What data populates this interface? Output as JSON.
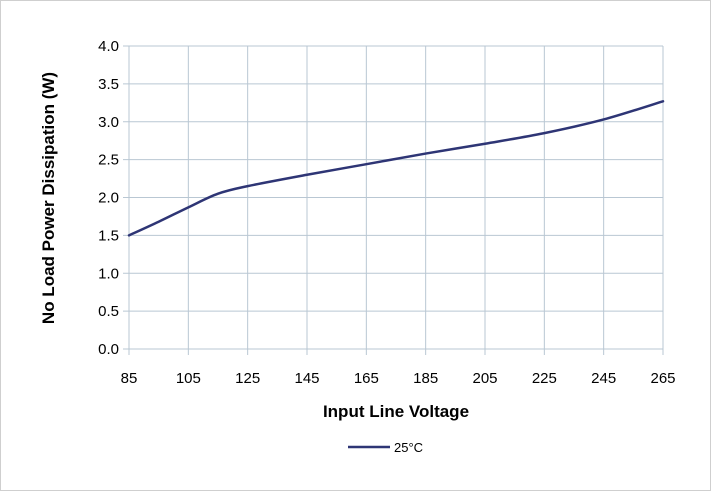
{
  "chart_data": {
    "type": "line",
    "title": "",
    "xlabel": "Input Line Voltage",
    "ylabel": "No Load Power Dissipation (W)",
    "xlim": [
      85,
      265
    ],
    "ylim": [
      0,
      4
    ],
    "x_ticks": [
      "85",
      "105",
      "125",
      "145",
      "165",
      "185",
      "205",
      "225",
      "245",
      "265"
    ],
    "y_ticks": [
      "0.0",
      "0.5",
      "1.0",
      "1.5",
      "2.0",
      "2.5",
      "3.0",
      "3.5",
      "4.0"
    ],
    "grid": true,
    "legend_position": "bottom",
    "series": [
      {
        "name": "25°C",
        "color": "#2e3575",
        "x": [
          85,
          95,
          105,
          115,
          125,
          145,
          165,
          185,
          205,
          225,
          245,
          265
        ],
        "y": [
          1.5,
          1.68,
          1.87,
          2.05,
          2.15,
          2.3,
          2.44,
          2.58,
          2.71,
          2.85,
          3.03,
          3.27
        ]
      }
    ]
  }
}
